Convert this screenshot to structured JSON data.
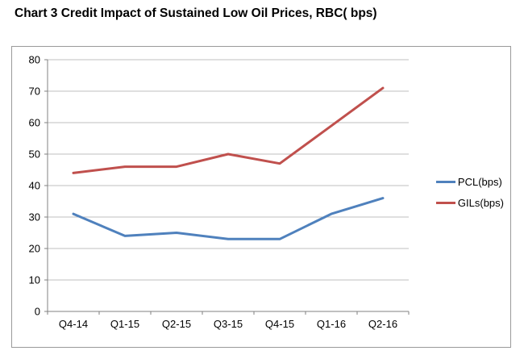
{
  "chart_data": {
    "type": "line",
    "title": "Chart 3 Credit Impact of Sustained Low Oil Prices, RBC( bps)",
    "categories": [
      "Q4-14",
      "Q1-15",
      "Q2-15",
      "Q3-15",
      "Q4-15",
      "Q1-16",
      "Q2-16"
    ],
    "series": [
      {
        "name": "PCL(bps)",
        "color": "#4F81BD",
        "values": [
          31,
          24,
          25,
          23,
          23,
          31,
          36
        ]
      },
      {
        "name": "GILs(bps)",
        "color": "#C0504D",
        "values": [
          44,
          46,
          46,
          50,
          47,
          59,
          71
        ]
      }
    ],
    "xlabel": "",
    "ylabel": "",
    "ylim": [
      0,
      80
    ],
    "ytick_step": 10,
    "grid": true,
    "legend_position": "right"
  },
  "style": {
    "grid_color": "#BFBFBF",
    "axis_color": "#808080",
    "text_color": "#000000",
    "frame_border_color": "#9A9A9A",
    "background": "#FFFFFF"
  }
}
